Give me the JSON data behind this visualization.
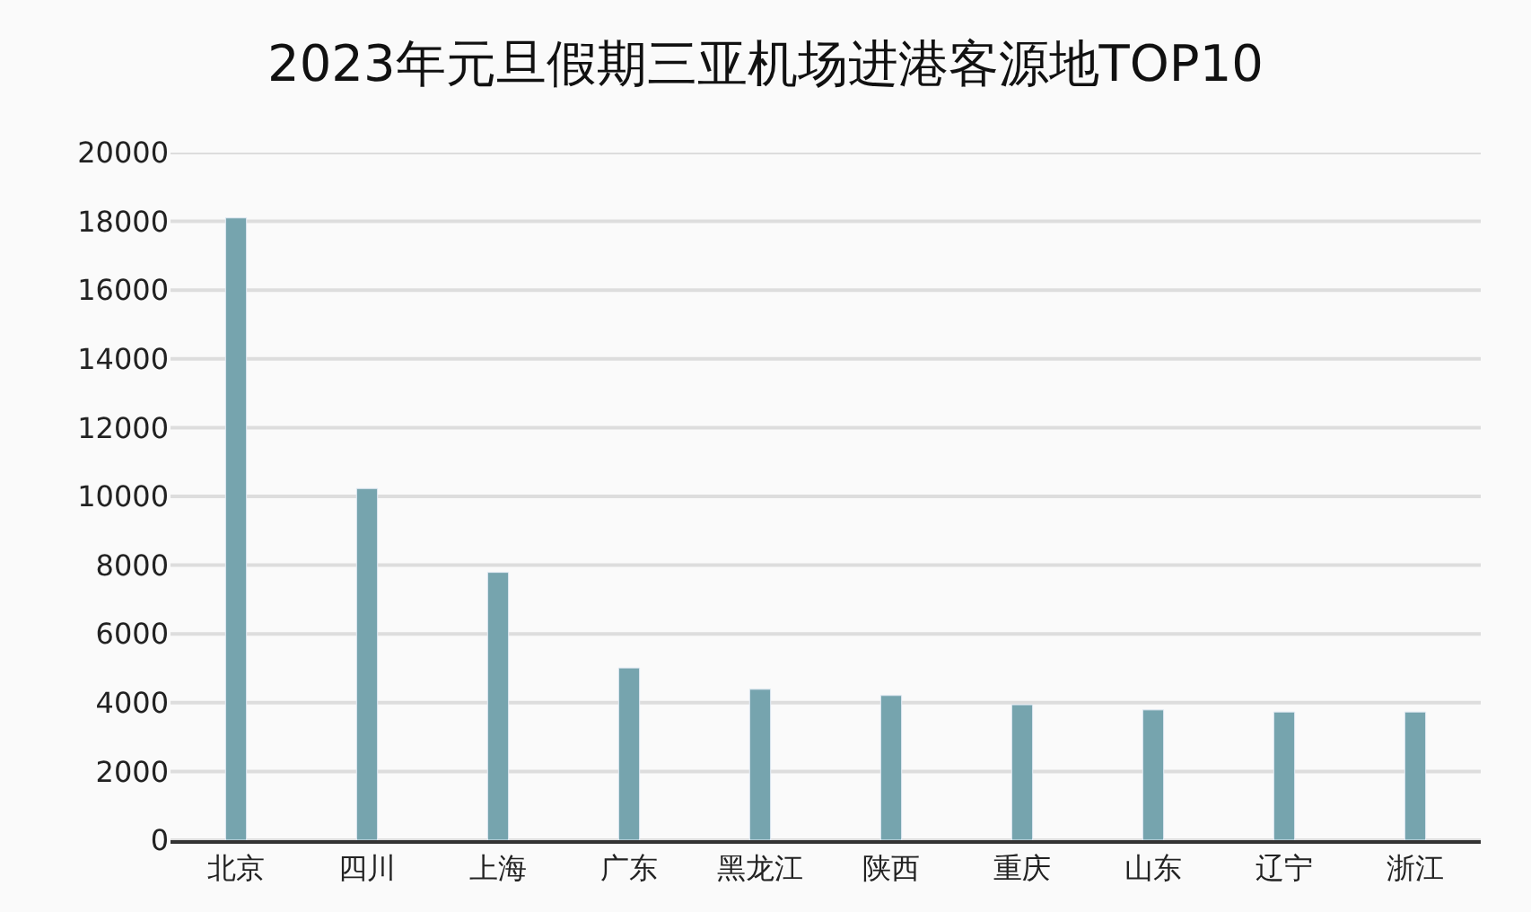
{
  "chart_data": {
    "type": "bar",
    "title": "2023年元旦假期三亚机场进港客源地TOP10",
    "categories": [
      "北京",
      "四川",
      "上海",
      "广东",
      "黑龙江",
      "陕西",
      "重庆",
      "山东",
      "辽宁",
      "浙江"
    ],
    "values": [
      18100,
      10230,
      7790,
      5010,
      4390,
      4210,
      3940,
      3790,
      3730,
      3730
    ],
    "color": "#76a4ae",
    "ylim": [
      0,
      20000
    ],
    "yticks": [
      0,
      2000,
      4000,
      6000,
      8000,
      10000,
      12000,
      14000,
      16000,
      18000,
      20000
    ],
    "grid": "y"
  }
}
